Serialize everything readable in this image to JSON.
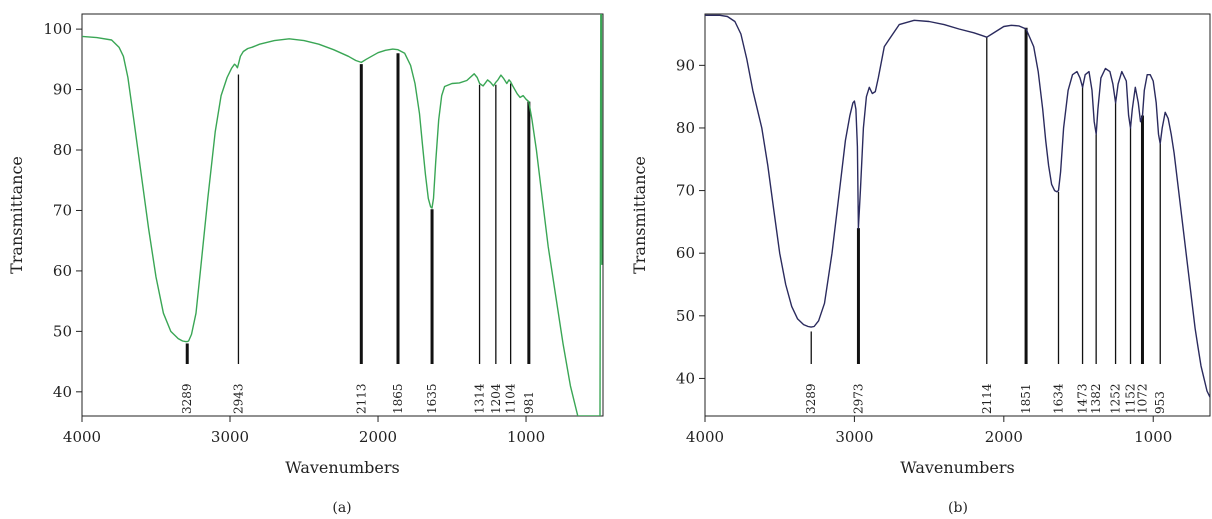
{
  "chart_data": [
    {
      "type": "line",
      "panel_label": "(a)",
      "xlabel": "Wavenumbers",
      "ylabel": "Transmittance",
      "xlim": [
        4000,
        480
      ],
      "ylim": [
        36,
        102.5
      ],
      "xticks": [
        4000,
        3000,
        2000,
        1000
      ],
      "yticks": [
        40,
        50,
        60,
        70,
        80,
        90,
        100
      ],
      "color": "#3aa655",
      "series": [
        {
          "x": [
            4000,
            3900,
            3800,
            3750,
            3720,
            3690,
            3650,
            3600,
            3550,
            3500,
            3450,
            3400,
            3350,
            3320,
            3300,
            3290,
            3280,
            3260,
            3230,
            3200,
            3150,
            3100,
            3060,
            3020,
            2990,
            2970,
            2960,
            2950,
            2943,
            2930,
            2910,
            2880,
            2850,
            2800,
            2700,
            2600,
            2500,
            2400,
            2300,
            2200,
            2150,
            2113,
            2080,
            2000,
            1950,
            1900,
            1865,
            1820,
            1780,
            1750,
            1720,
            1700,
            1680,
            1660,
            1645,
            1635,
            1625,
            1610,
            1590,
            1570,
            1550,
            1500,
            1450,
            1400,
            1350,
            1330,
            1314,
            1290,
            1260,
            1240,
            1220,
            1204,
            1190,
            1170,
            1150,
            1130,
            1115,
            1104,
            1090,
            1060,
            1040,
            1020,
            1000,
            981,
            960,
            930,
            900,
            850,
            800,
            750,
            700,
            650,
            600,
            560,
            500,
            495,
            490,
            488
          ],
          "y": [
            98.8,
            98.6,
            98.2,
            97.0,
            95.5,
            92.0,
            85.0,
            76.0,
            67.0,
            59.0,
            53.0,
            50.0,
            48.8,
            48.4,
            48.3,
            48.3,
            48.4,
            49.5,
            53.0,
            60.0,
            72.0,
            83.0,
            89.0,
            92.0,
            93.5,
            94.2,
            94.0,
            93.6,
            94.2,
            95.5,
            96.3,
            96.8,
            97.0,
            97.5,
            98.1,
            98.4,
            98.1,
            97.5,
            96.6,
            95.5,
            94.8,
            94.5,
            95.0,
            96.1,
            96.5,
            96.7,
            96.6,
            96.0,
            94.0,
            91.0,
            86.0,
            81.0,
            76.0,
            72.0,
            70.6,
            70.4,
            72.0,
            78.0,
            85.0,
            89.0,
            90.5,
            91.0,
            91.1,
            91.5,
            92.6,
            92.0,
            91.0,
            90.6,
            91.6,
            91.2,
            90.6,
            91.2,
            91.6,
            92.4,
            91.8,
            91.0,
            91.6,
            91.3,
            90.6,
            89.3,
            88.7,
            89.0,
            88.4,
            88.0,
            85.0,
            80.0,
            74.0,
            64.0,
            56.0,
            48.0,
            41.0,
            36.0,
            36.0,
            36.0,
            36.0,
            103.0,
            103.0,
            61.0
          ]
        }
      ],
      "peaks": [
        {
          "x": 3289,
          "label": "3289",
          "top": 48.0,
          "bold": true
        },
        {
          "x": 2943,
          "label": "2943",
          "top": 92.5,
          "bold": false
        },
        {
          "x": 2113,
          "label": "2113",
          "top": 94.2,
          "bold": true
        },
        {
          "x": 1865,
          "label": "1865",
          "top": 96.0,
          "bold": true
        },
        {
          "x": 1635,
          "label": "1635",
          "top": 70.2,
          "bold": true
        },
        {
          "x": 1314,
          "label": "1314",
          "top": 90.8,
          "bold": false
        },
        {
          "x": 1204,
          "label": "1204",
          "top": 90.8,
          "bold": false
        },
        {
          "x": 1104,
          "label": "1104",
          "top": 91.0,
          "bold": false
        },
        {
          "x": 981,
          "label": "981",
          "top": 88.0,
          "bold": true
        }
      ]
    },
    {
      "type": "line",
      "panel_label": "(b)",
      "xlabel": "Wavenumbers",
      "ylabel": "Transmittance",
      "xlim": [
        4000,
        620
      ],
      "ylim": [
        34,
        98.2
      ],
      "xticks": [
        4000,
        3000,
        2000,
        1000
      ],
      "yticks": [
        40,
        50,
        60,
        70,
        80,
        90
      ],
      "color": "#2b2b5e",
      "series": [
        {
          "x": [
            4000,
            3900,
            3850,
            3800,
            3760,
            3720,
            3680,
            3650,
            3620,
            3580,
            3540,
            3500,
            3460,
            3420,
            3380,
            3340,
            3310,
            3290,
            3270,
            3240,
            3200,
            3150,
            3100,
            3060,
            3030,
            3010,
            3000,
            2990,
            2980,
            2973,
            2960,
            2940,
            2920,
            2900,
            2880,
            2860,
            2840,
            2800,
            2700,
            2600,
            2500,
            2400,
            2300,
            2200,
            2150,
            2114,
            2080,
            2000,
            1950,
            1900,
            1851,
            1800,
            1770,
            1740,
            1720,
            1700,
            1680,
            1660,
            1645,
            1634,
            1620,
            1600,
            1570,
            1540,
            1510,
            1490,
            1473,
            1455,
            1430,
            1410,
            1395,
            1382,
            1370,
            1350,
            1320,
            1290,
            1270,
            1252,
            1235,
            1210,
            1180,
            1165,
            1152,
            1140,
            1120,
            1100,
            1085,
            1072,
            1060,
            1040,
            1020,
            1000,
            980,
            965,
            953,
            940,
            920,
            900,
            880,
            860,
            840,
            820,
            800,
            780,
            760,
            740,
            720,
            700,
            680,
            660,
            640,
            620
          ],
          "y": [
            98.0,
            98.0,
            97.8,
            97.0,
            95.0,
            91.0,
            86.0,
            83.0,
            80.0,
            74.0,
            67.0,
            60.0,
            55.0,
            51.5,
            49.5,
            48.6,
            48.3,
            48.2,
            48.3,
            49.2,
            52.0,
            60.0,
            70.0,
            78.0,
            82.0,
            84.0,
            84.3,
            83.0,
            77.0,
            64.0,
            70.0,
            80.0,
            85.0,
            86.5,
            85.5,
            85.8,
            88.0,
            93.0,
            96.5,
            97.2,
            97.0,
            96.5,
            95.8,
            95.2,
            94.8,
            94.5,
            95.0,
            96.2,
            96.4,
            96.3,
            95.8,
            93.0,
            89.0,
            83.0,
            78.0,
            74.0,
            71.0,
            70.0,
            69.8,
            70.0,
            73.0,
            80.0,
            86.0,
            88.5,
            89.0,
            88.0,
            86.5,
            88.5,
            89.0,
            86.0,
            81.0,
            79.0,
            83.0,
            88.0,
            89.5,
            89.0,
            87.0,
            84.0,
            87.0,
            89.0,
            87.5,
            82.0,
            80.0,
            83.0,
            86.5,
            84.0,
            81.0,
            82.0,
            86.0,
            88.5,
            88.5,
            87.5,
            84.0,
            79.0,
            77.5,
            80.0,
            82.5,
            81.5,
            79.0,
            76.0,
            72.0,
            68.0,
            64.0,
            60.0,
            56.0,
            52.0,
            48.0,
            45.0,
            42.0,
            40.0,
            38.0,
            37.0
          ]
        }
      ],
      "peaks": [
        {
          "x": 3289,
          "label": "3289",
          "top": 47.5,
          "bold": false
        },
        {
          "x": 2973,
          "label": "2973",
          "top": 64.0,
          "bold": true
        },
        {
          "x": 2114,
          "label": "2114",
          "top": 94.5,
          "bold": false
        },
        {
          "x": 1851,
          "label": "1851",
          "top": 96.0,
          "bold": true
        },
        {
          "x": 1634,
          "label": "1634",
          "top": 69.8,
          "bold": false
        },
        {
          "x": 1473,
          "label": "1473",
          "top": 86.5,
          "bold": false
        },
        {
          "x": 1382,
          "label": "1382",
          "top": 79.0,
          "bold": false
        },
        {
          "x": 1252,
          "label": "1252",
          "top": 84.0,
          "bold": false
        },
        {
          "x": 1152,
          "label": "1152",
          "top": 80.0,
          "bold": false
        },
        {
          "x": 1072,
          "label": "1072",
          "top": 82.0,
          "bold": true
        },
        {
          "x": 953,
          "label": "953",
          "top": 77.5,
          "bold": false
        }
      ]
    }
  ]
}
